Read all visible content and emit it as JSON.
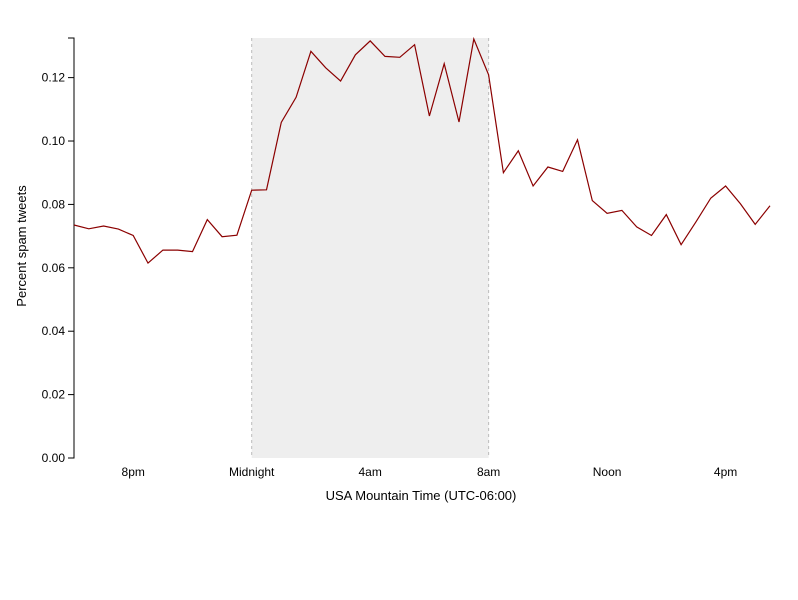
{
  "chart_data": {
    "type": "line",
    "xlabel": "USA Mountain Time (UTC-06:00)",
    "ylabel": "Percent spam tweets",
    "x_start_hour": 18,
    "x_step_hours": 0.5,
    "xlim": [
      18,
      41.5
    ],
    "ylim": [
      0,
      0.1325
    ],
    "xticks": [
      {
        "hour": 20,
        "label": "8pm"
      },
      {
        "hour": 24,
        "label": "Midnight"
      },
      {
        "hour": 28,
        "label": "4am"
      },
      {
        "hour": 32,
        "label": "8am"
      },
      {
        "hour": 36,
        "label": "Noon"
      },
      {
        "hour": 40,
        "label": "4pm"
      }
    ],
    "yticks": [
      {
        "value": 0,
        "label": "0.00"
      },
      {
        "value": 0.02,
        "label": "0.02"
      },
      {
        "value": 0.04,
        "label": "0.04"
      },
      {
        "value": 0.06,
        "label": "0.06"
      },
      {
        "value": 0.08,
        "label": "0.08"
      },
      {
        "value": 0.1,
        "label": "0.10"
      },
      {
        "value": 0.12,
        "label": "0.12"
      }
    ],
    "highlight_range": [
      24,
      32
    ],
    "colors": {
      "line": "#8b0000",
      "highlight": "#eeeeee",
      "highlight_border": "#bbbbbb"
    },
    "grid": false,
    "series": [
      {
        "values": [
          0.0735,
          0.0723,
          0.0732,
          0.0722,
          0.0702,
          0.0615,
          0.0656,
          0.0656,
          0.0651,
          0.0752,
          0.0698,
          0.0703,
          0.0845,
          0.0846,
          0.1059,
          0.1138,
          0.1283,
          0.1231,
          0.1189,
          0.1272,
          0.1316,
          0.1267,
          0.1264,
          0.1304,
          0.1079,
          0.1244,
          0.106,
          0.1322,
          0.1209,
          0.09,
          0.0969,
          0.0858,
          0.0918,
          0.0904,
          0.1004,
          0.0812,
          0.0772,
          0.0781,
          0.0729,
          0.0702,
          0.0768,
          0.0673,
          0.0745,
          0.082,
          0.0858,
          0.0802,
          0.0737,
          0.0796
        ]
      }
    ]
  }
}
